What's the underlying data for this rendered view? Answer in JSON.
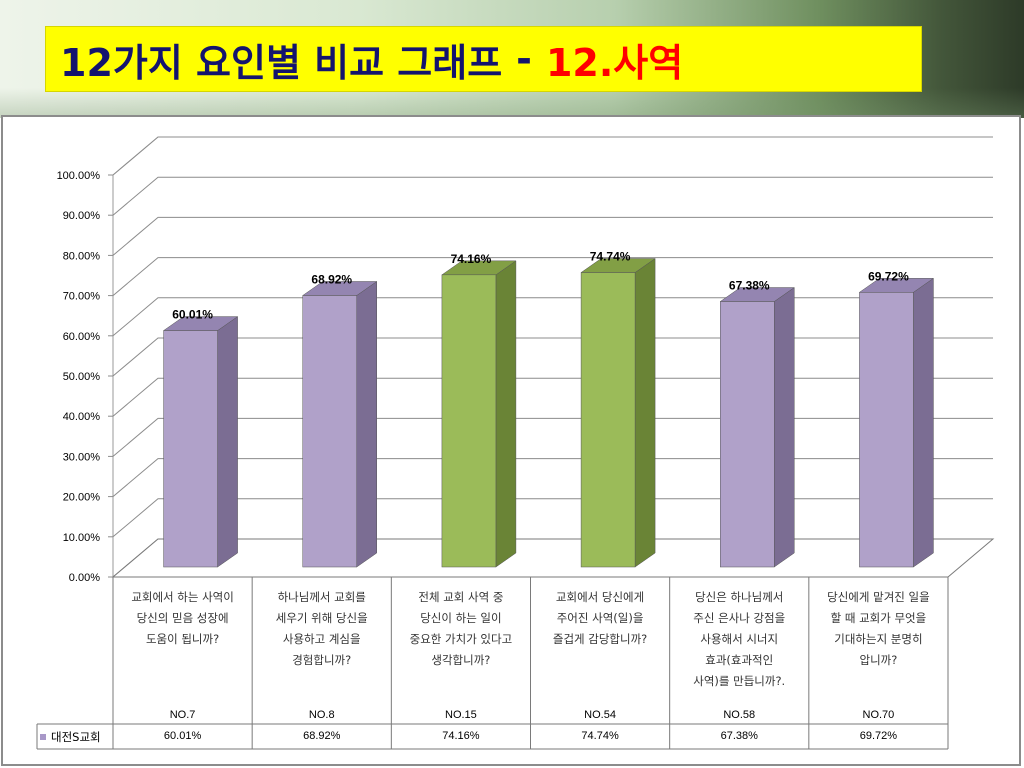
{
  "title": {
    "main": "12가지 요인별 비교 그래프",
    "separator": "-",
    "highlight": "12.사역"
  },
  "colors": {
    "purple_front": "#b0a1c9",
    "purple_side": "#7b6d93",
    "purple_top": "#9485b1",
    "green_front": "#9bbb59",
    "green_side": "#6a8436",
    "green_top": "#829f45"
  },
  "chart_data": {
    "type": "bar",
    "ylim": [
      0,
      100
    ],
    "yticks": [
      "0.00%",
      "10.00%",
      "20.00%",
      "30.00%",
      "40.00%",
      "50.00%",
      "60.00%",
      "70.00%",
      "80.00%",
      "90.00%",
      "100.00%"
    ],
    "categories": [
      "교회에서 하는 사역이\n당신의 믿음 성장에\n도움이 됩니까?",
      "하나님께서 교회를\n세우기 위해 당신을\n사용하고 계심을\n경험합니까?",
      "전체 교회 사역 중\n당신이 하는 일이\n중요한 가치가 있다고\n생각합니까?",
      "교회에서 당신에게\n주어진 사역(일)을\n즐겁게 감당합니까?",
      "당신은 하나님께서\n주신 은사나 강점을\n사용해서 시너지\n효과(효과적인\n사역)를 만듭니까?.",
      "당신에게 맡겨진 일을\n할 때 교회가 무엇을\n기대하는지 분명히\n압니까?"
    ],
    "numbers": [
      "NO.7",
      "NO.8",
      "NO.15",
      "NO.54",
      "NO.58",
      "NO.70"
    ],
    "values": [
      60.01,
      68.92,
      74.16,
      74.74,
      67.38,
      69.72
    ],
    "data_labels": [
      "60.01%",
      "68.92%",
      "74.16%",
      "74.74%",
      "67.38%",
      "69.72%"
    ],
    "bar_colors": [
      "purple",
      "purple",
      "green",
      "green",
      "purple",
      "purple"
    ],
    "series": [
      {
        "name": "대전S교회",
        "values_text": [
          "60.01%",
          "68.92%",
          "74.16%",
          "74.74%",
          "67.38%",
          "69.72%"
        ]
      }
    ],
    "grid": true,
    "legend": "bottom-left"
  }
}
